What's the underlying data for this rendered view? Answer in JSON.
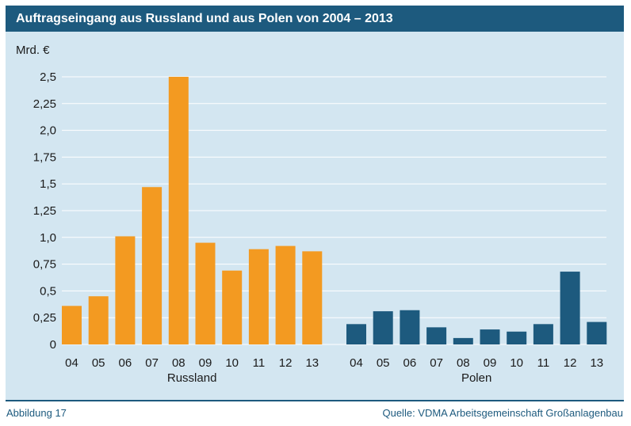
{
  "header": {
    "title": "Auftragseingang aus Russland und aus Polen von 2004 – 2013"
  },
  "footer": {
    "figure_label": "Abbildung 17",
    "source": "Quelle: VDMA Arbeitsgemeinschaft Großanlagenbau"
  },
  "colors": {
    "header_bg": "#1d5a7e",
    "panel_bg": "#d3e6f1",
    "russland": "#f39a21",
    "polen": "#1d5a7e",
    "grid": "#ffffff"
  },
  "chart_data": {
    "type": "bar",
    "title": "Auftragseingang aus Russland und aus Polen von 2004 – 2013",
    "ylabel": "Mrd. €",
    "xlabel": "",
    "ylim": [
      0,
      2.5
    ],
    "y_ticks": [
      {
        "value": 0,
        "label": "0"
      },
      {
        "value": 0.25,
        "label": "0,25"
      },
      {
        "value": 0.5,
        "label": "0,5"
      },
      {
        "value": 0.75,
        "label": "0,75"
      },
      {
        "value": 1.0,
        "label": "1,0"
      },
      {
        "value": 1.25,
        "label": "1,25"
      },
      {
        "value": 1.5,
        "label": "1,5"
      },
      {
        "value": 1.75,
        "label": "1,75"
      },
      {
        "value": 2.0,
        "label": "2,0"
      },
      {
        "value": 2.25,
        "label": "2,25"
      },
      {
        "value": 2.5,
        "label": "2,5"
      }
    ],
    "grid": true,
    "groups": [
      {
        "name": "Russland",
        "color": "#f39a21",
        "categories": [
          "04",
          "05",
          "06",
          "07",
          "08",
          "09",
          "10",
          "11",
          "12",
          "13"
        ],
        "values": [
          0.36,
          0.45,
          1.01,
          1.47,
          2.5,
          0.95,
          0.69,
          0.89,
          0.92,
          0.87
        ]
      },
      {
        "name": "Polen",
        "color": "#1d5a7e",
        "categories": [
          "04",
          "05",
          "06",
          "07",
          "08",
          "09",
          "10",
          "11",
          "12",
          "13"
        ],
        "values": [
          0.19,
          0.31,
          0.32,
          0.16,
          0.06,
          0.14,
          0.12,
          0.19,
          0.68,
          0.21
        ]
      }
    ]
  }
}
